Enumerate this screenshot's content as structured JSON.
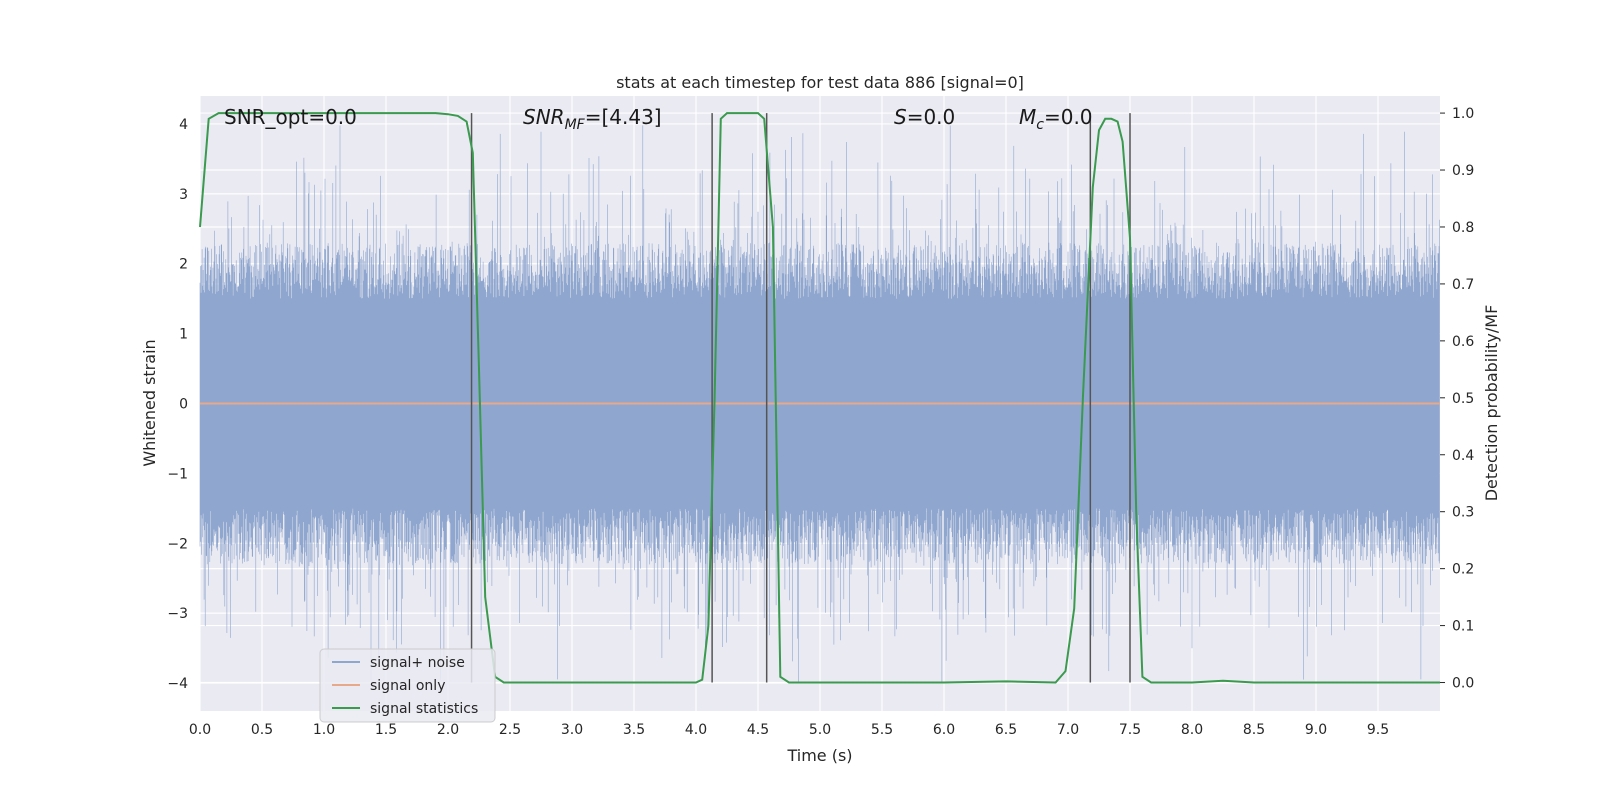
{
  "chart_data": {
    "type": "line",
    "title": "stats at each timestep for test data 886 [signal=0]",
    "xlabel": "Time (s)",
    "ylabel_left": "Whitened strain",
    "ylabel_right": "Detection probability/MF",
    "xlim": [
      0.0,
      10.0
    ],
    "ylim_left": [
      -4.4,
      4.4
    ],
    "ylim_right": [
      -0.05,
      1.03
    ],
    "x_ticks": [
      "0.0",
      "0.5",
      "1.0",
      "1.5",
      "2.0",
      "2.5",
      "3.0",
      "3.5",
      "4.0",
      "4.5",
      "5.0",
      "5.5",
      "6.0",
      "6.5",
      "7.0",
      "7.5",
      "8.0",
      "8.5",
      "9.0",
      "9.5"
    ],
    "y_ticks_left": [
      "−4",
      "−3",
      "−2",
      "−1",
      "0",
      "1",
      "2",
      "3",
      "4"
    ],
    "y_ticks_right": [
      "0.0",
      "0.1",
      "0.2",
      "0.3",
      "0.4",
      "0.5",
      "0.6",
      "0.7",
      "0.8",
      "0.9",
      "1.0"
    ],
    "grid": true,
    "legend_position": "lower-left",
    "annotations": {
      "snr_opt": "SNR_opt=0.0",
      "snr_mf_main": "SNR",
      "snr_mf_sub": "MF",
      "snr_mf_value": "=[4.43]",
      "s_symbol": "S",
      "s_value": "=0.0",
      "mc_symbol": "M",
      "mc_sub": "c",
      "mc_value": "=0.0"
    },
    "series": [
      {
        "name": "signal+ noise",
        "color": "#8fa6cf",
        "axis": "left",
        "style": "noise band, amplitude mostly within ±2.4 with spikes to ±4"
      },
      {
        "name": "signal only",
        "color": "#e8a88a",
        "axis": "left",
        "x": [
          0.0,
          10.0
        ],
        "y": [
          0.0,
          0.0
        ]
      },
      {
        "name": "signal statistics",
        "color": "#3a9a4e",
        "axis": "right",
        "x": [
          0.0,
          0.07,
          0.15,
          0.3,
          1.0,
          1.5,
          1.9,
          2.0,
          2.08,
          2.15,
          2.2,
          2.25,
          2.3,
          2.38,
          2.45,
          2.5,
          3.0,
          3.5,
          4.0,
          4.05,
          4.1,
          4.15,
          4.2,
          4.25,
          4.3,
          4.4,
          4.5,
          4.55,
          4.62,
          4.68,
          4.75,
          5.0,
          5.5,
          6.0,
          6.5,
          6.9,
          6.98,
          7.05,
          7.12,
          7.2,
          7.25,
          7.3,
          7.35,
          7.4,
          7.44,
          7.5,
          7.55,
          7.6,
          7.67,
          7.75,
          8.0,
          8.25,
          8.5,
          9.0,
          9.5,
          10.0
        ],
        "y": [
          0.8,
          0.99,
          1.0,
          1.0,
          1.0,
          1.0,
          1.0,
          0.998,
          0.995,
          0.985,
          0.93,
          0.55,
          0.15,
          0.01,
          0.0,
          0.0,
          0.0,
          0.0,
          0.0,
          0.005,
          0.1,
          0.5,
          0.99,
          1.0,
          1.0,
          1.0,
          1.0,
          0.99,
          0.8,
          0.01,
          0.0,
          0.0,
          0.0,
          0.0,
          0.002,
          0.0,
          0.02,
          0.13,
          0.5,
          0.87,
          0.97,
          0.99,
          0.99,
          0.985,
          0.95,
          0.78,
          0.3,
          0.01,
          0.0,
          0.0,
          0.0,
          0.003,
          0.0,
          0.0,
          0.0,
          0.0
        ]
      }
    ],
    "vertical_markers": [
      2.19,
      4.13,
      4.57,
      7.18,
      7.5
    ]
  }
}
